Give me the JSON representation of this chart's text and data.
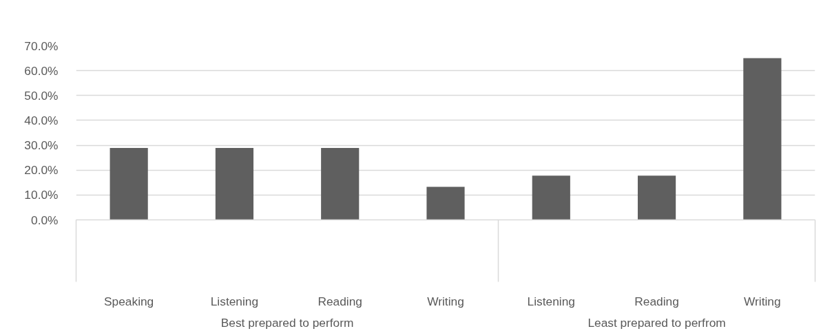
{
  "chart_data": {
    "type": "bar",
    "categories": [
      "Speaking",
      "Listening",
      "Reading",
      "Writing",
      "Listening",
      "Reading",
      "Writing"
    ],
    "values": [
      28.9,
      28.9,
      28.9,
      13.3,
      17.8,
      17.8,
      65.0
    ],
    "color": "#5f5f5f",
    "ylim": [
      0,
      70
    ],
    "yticks": [
      {
        "value": 0,
        "label": "0.0%"
      },
      {
        "value": 10,
        "label": "10.0%"
      },
      {
        "value": 20,
        "label": "20.0%"
      },
      {
        "value": 30,
        "label": "30.0%"
      },
      {
        "value": 40,
        "label": "40.0%"
      },
      {
        "value": 50,
        "label": "50.0%"
      },
      {
        "value": 60,
        "label": "60.0%"
      },
      {
        "value": 70,
        "label": "70.0%"
      }
    ],
    "grid": "y",
    "annotations": [
      "Best prepared to perform",
      "Least prepared to perfrom"
    ]
  }
}
